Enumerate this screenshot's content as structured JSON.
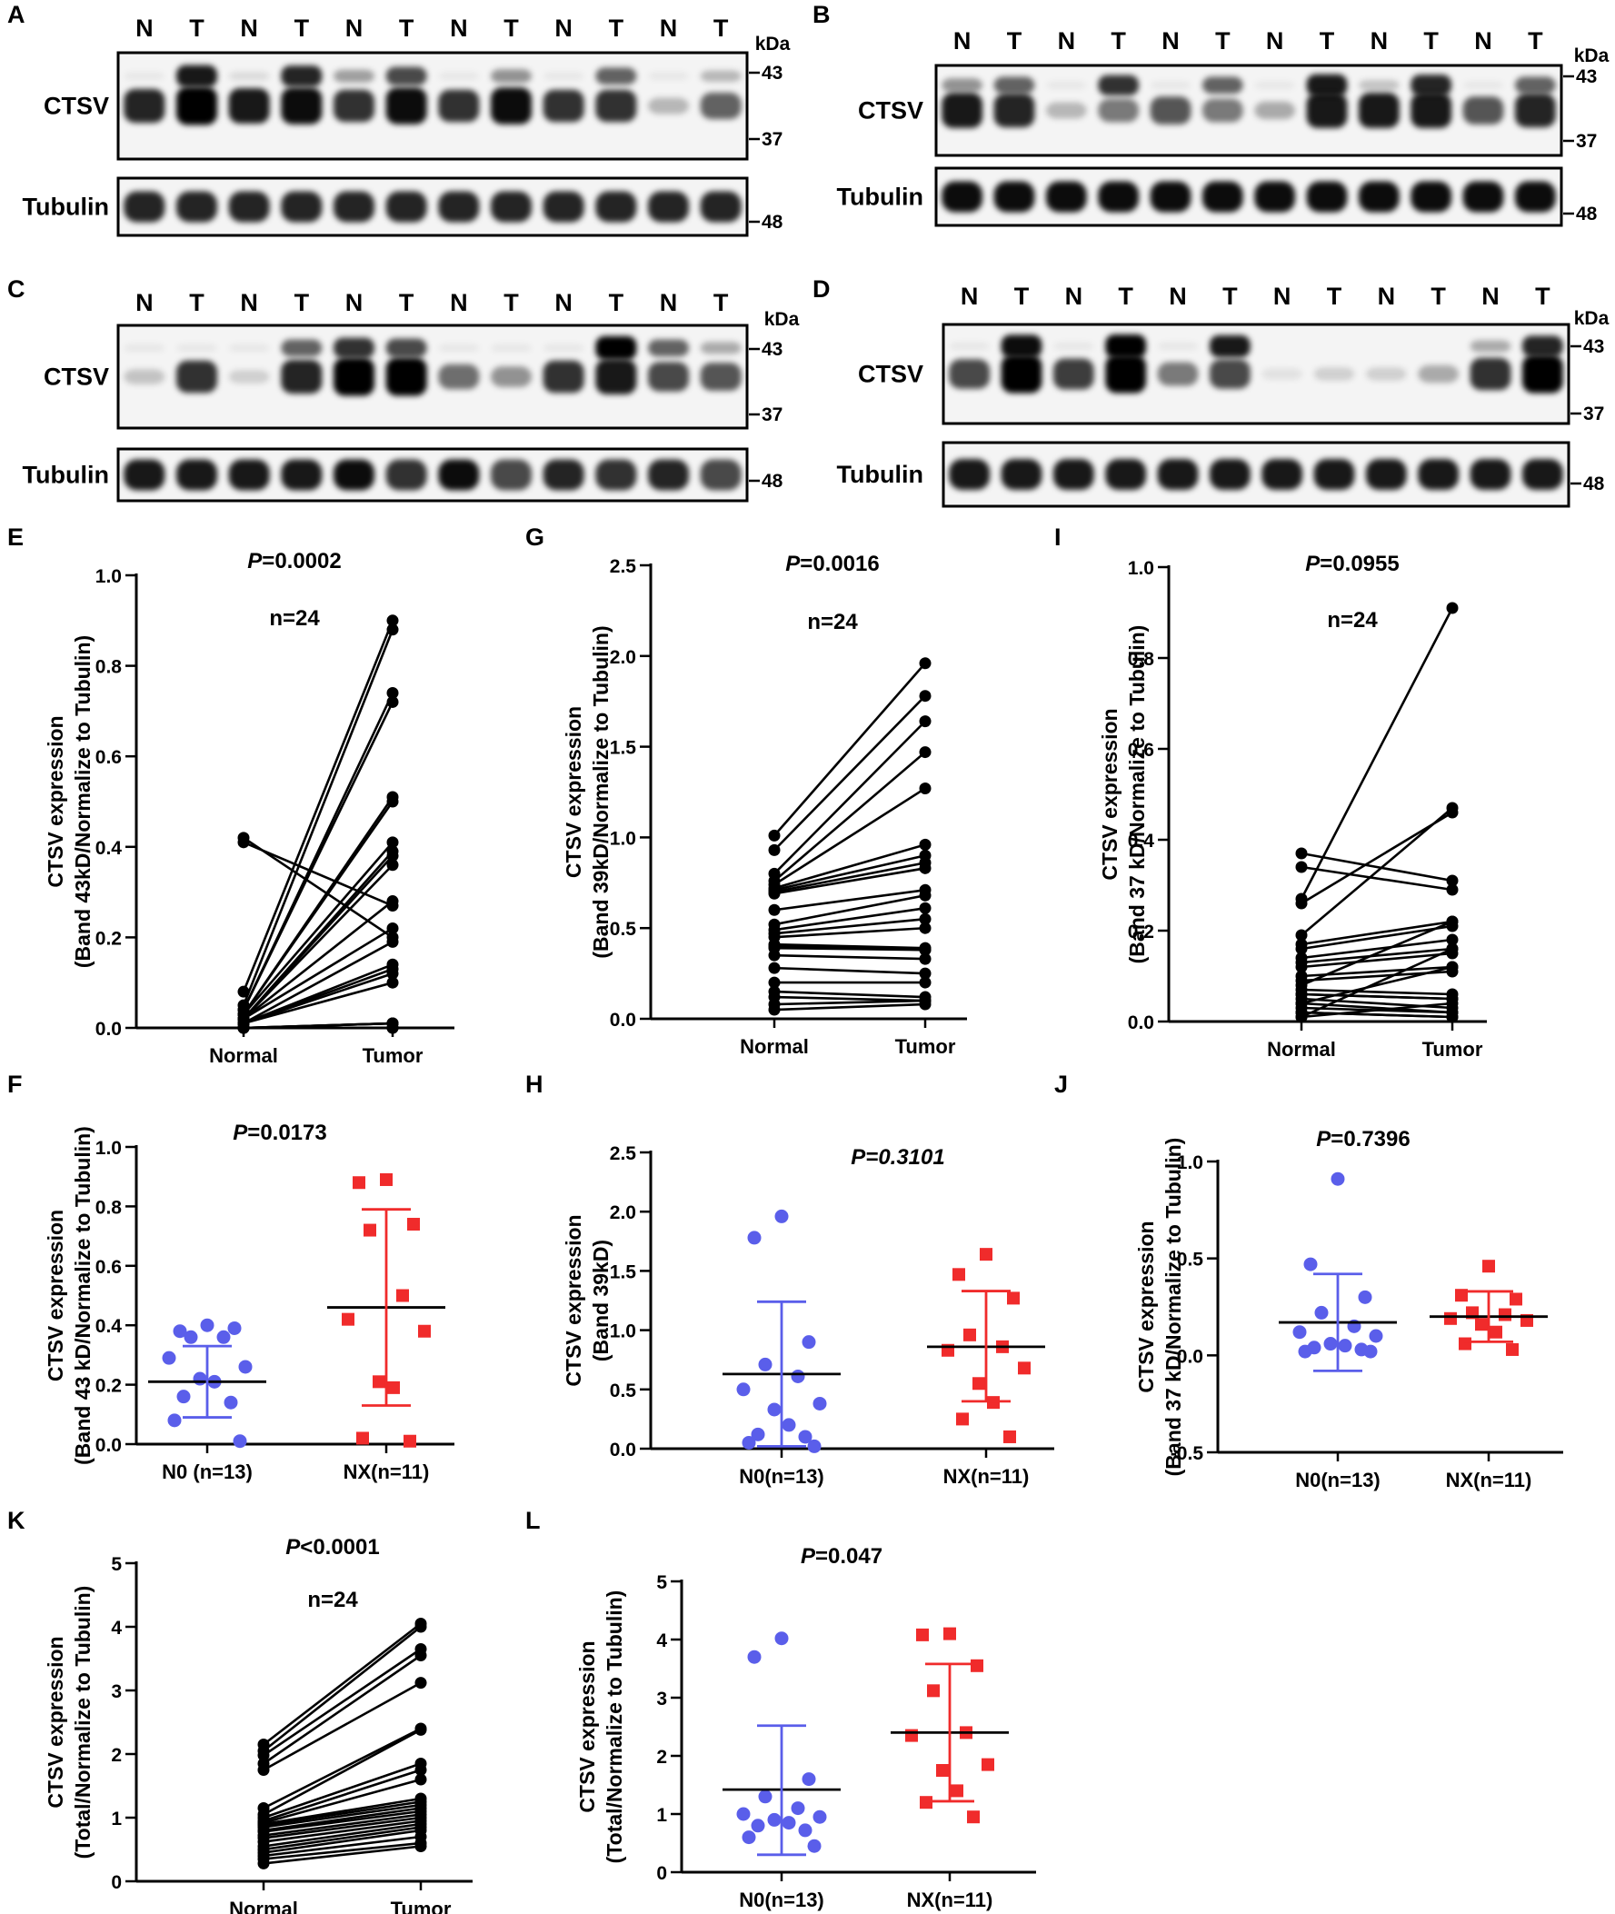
{
  "colors": {
    "normal_group": "#5A5EEA",
    "tumor_group": "#F02B2B",
    "line": "#000000"
  },
  "blots": [
    {
      "letter": "A",
      "lanes": [
        "N",
        "T",
        "N",
        "T",
        "N",
        "T",
        "N",
        "T",
        "N",
        "T",
        "N",
        "T"
      ],
      "protein": "CTSV",
      "loading": "Tubulin",
      "kda_label": "kDa",
      "markers": [
        "43",
        "37"
      ],
      "loading_marker": "48",
      "band43": [
        0.05,
        0.9,
        0.1,
        0.85,
        0.35,
        0.7,
        0.05,
        0.4,
        0.05,
        0.6,
        0.05,
        0.25
      ],
      "band39": [
        0.85,
        1.0,
        0.9,
        0.95,
        0.8,
        0.95,
        0.8,
        0.95,
        0.8,
        0.8,
        0.25,
        0.6
      ],
      "tubulin": [
        0.85,
        0.85,
        0.85,
        0.85,
        0.85,
        0.85,
        0.85,
        0.85,
        0.85,
        0.85,
        0.85,
        0.85
      ]
    },
    {
      "letter": "B",
      "lanes": [
        "N",
        "T",
        "N",
        "T",
        "N",
        "T",
        "N",
        "T",
        "N",
        "T",
        "N",
        "T"
      ],
      "protein": "CTSV",
      "loading": "Tubulin",
      "kda_label": "kDa",
      "markers": [
        "43",
        "37"
      ],
      "loading_marker": "48",
      "band43": [
        0.4,
        0.6,
        0.05,
        0.8,
        0.05,
        0.6,
        0.05,
        0.9,
        0.2,
        0.85,
        0.05,
        0.6
      ],
      "band39": [
        0.9,
        0.85,
        0.25,
        0.5,
        0.65,
        0.5,
        0.3,
        0.9,
        0.9,
        0.9,
        0.65,
        0.85
      ],
      "tubulin": [
        0.95,
        0.95,
        0.95,
        0.95,
        0.95,
        0.95,
        0.95,
        0.95,
        0.95,
        0.95,
        0.95,
        0.95
      ]
    },
    {
      "letter": "C",
      "lanes": [
        "N",
        "T",
        "N",
        "T",
        "N",
        "T",
        "N",
        "T",
        "N",
        "T",
        "N",
        "T"
      ],
      "protein": "CTSV",
      "loading": "Tubulin",
      "kda_label": "kDa",
      "markers": [
        "43",
        "37"
      ],
      "loading_marker": "48",
      "band43": [
        0.05,
        0.05,
        0.05,
        0.6,
        0.8,
        0.7,
        0.05,
        0.05,
        0.05,
        1.0,
        0.6,
        0.3
      ],
      "band39": [
        0.2,
        0.8,
        0.15,
        0.85,
        1.0,
        1.0,
        0.55,
        0.4,
        0.8,
        0.9,
        0.7,
        0.65
      ],
      "tubulin": [
        0.9,
        0.9,
        0.9,
        0.9,
        0.95,
        0.8,
        0.95,
        0.7,
        0.85,
        0.8,
        0.85,
        0.7
      ]
    },
    {
      "letter": "D",
      "lanes": [
        "N",
        "T",
        "N",
        "T",
        "N",
        "T",
        "N",
        "T",
        "N",
        "T",
        "N",
        "T"
      ],
      "protein": "CTSV",
      "loading": "Tubulin",
      "kda_label": "kDa",
      "markers": [
        "43",
        "37"
      ],
      "loading_marker": "48",
      "band43": [
        0.05,
        0.95,
        0.05,
        1.0,
        0.05,
        0.9,
        0.0,
        0.0,
        0.0,
        0.0,
        0.3,
        0.85
      ],
      "band39": [
        0.7,
        1.0,
        0.75,
        1.0,
        0.5,
        0.7,
        0.08,
        0.15,
        0.15,
        0.3,
        0.8,
        1.0
      ],
      "tubulin": [
        0.9,
        0.9,
        0.9,
        0.9,
        0.9,
        0.9,
        0.9,
        0.9,
        0.9,
        0.9,
        0.9,
        0.9
      ]
    }
  ],
  "chart_data": [
    {
      "id": "E",
      "type": "line",
      "letter": "E",
      "title_p": "P",
      "title_rest": "=0.0002",
      "title_italic": false,
      "n_label": "n=24",
      "ylabel_lines": [
        "CTSV expression",
        "(Band 43kD/Normalize to Tubulin)"
      ],
      "categories": [
        "Normal",
        "Tumor"
      ],
      "yticks": [
        "0.0",
        "0.2",
        "0.4",
        "0.6",
        "0.8",
        "1.0"
      ],
      "ylim": [
        0,
        1.0
      ],
      "series": {
        "normal": [
          0.42,
          0.41,
          0.08,
          0.05,
          0.04,
          0.04,
          0.03,
          0.03,
          0.03,
          0.02,
          0.02,
          0.02,
          0.02,
          0.02,
          0.01,
          0.01,
          0.01,
          0.01,
          0.01,
          0.0,
          0.0,
          0.0,
          0.0,
          0.0
        ],
        "tumor": [
          0.2,
          0.27,
          0.9,
          0.88,
          0.74,
          0.72,
          0.51,
          0.5,
          0.41,
          0.39,
          0.38,
          0.36,
          0.28,
          0.22,
          0.19,
          0.14,
          0.13,
          0.12,
          0.1,
          0.01,
          0.01,
          0.01,
          0.0,
          0.0
        ]
      }
    },
    {
      "id": "G",
      "type": "line",
      "letter": "G",
      "title_p": "P",
      "title_rest": "=0.0016",
      "title_italic": false,
      "n_label": "n=24",
      "ylabel_lines": [
        "CTSV expression",
        "(Band 39kD/Normalize to Tubulin)"
      ],
      "categories": [
        "Normal",
        "Tumor"
      ],
      "yticks": [
        "0.0",
        "0.5",
        "1.0",
        "1.5",
        "2.0",
        "2.5"
      ],
      "ylim": [
        0,
        2.5
      ],
      "series": {
        "normal": [
          1.01,
          0.93,
          0.8,
          0.76,
          0.74,
          0.72,
          0.71,
          0.7,
          0.69,
          0.6,
          0.52,
          0.49,
          0.47,
          0.45,
          0.41,
          0.4,
          0.39,
          0.35,
          0.28,
          0.2,
          0.15,
          0.12,
          0.08,
          0.05
        ],
        "tumor": [
          1.96,
          1.78,
          1.64,
          1.47,
          1.27,
          0.96,
          0.9,
          0.86,
          0.83,
          0.71,
          0.68,
          0.61,
          0.55,
          0.5,
          0.39,
          0.38,
          0.38,
          0.33,
          0.25,
          0.2,
          0.12,
          0.1,
          0.1,
          0.08
        ]
      }
    },
    {
      "id": "I",
      "type": "line",
      "letter": "I",
      "title_p": "P",
      "title_rest": "=0.0955",
      "title_italic": false,
      "n_label": "n=24",
      "ylabel_lines": [
        "CTSV expression",
        "(Band 37 kD/Normalize to Tubulin)"
      ],
      "categories": [
        "Normal",
        "Tumor"
      ],
      "yticks": [
        "0.0",
        "0.2",
        "0.4",
        "0.6",
        "0.8",
        "1.0"
      ],
      "ylim": [
        0,
        1.0
      ],
      "series": {
        "normal": [
          0.37,
          0.34,
          0.27,
          0.26,
          0.19,
          0.17,
          0.16,
          0.14,
          0.13,
          0.12,
          0.1,
          0.09,
          0.08,
          0.07,
          0.06,
          0.06,
          0.05,
          0.04,
          0.04,
          0.03,
          0.02,
          0.02,
          0.01,
          0.01
        ],
        "tumor": [
          0.31,
          0.29,
          0.91,
          0.46,
          0.47,
          0.22,
          0.21,
          0.18,
          0.16,
          0.15,
          0.12,
          0.11,
          0.22,
          0.06,
          0.05,
          0.05,
          0.03,
          0.12,
          0.02,
          0.02,
          0.01,
          0.01,
          0.16,
          0.04
        ]
      }
    },
    {
      "id": "F",
      "type": "scatter",
      "letter": "F",
      "title_p": "P",
      "title_rest": "=0.0173",
      "title_italic": false,
      "ylabel_lines": [
        "CTSV expression",
        "(Band 43 kD/Normalize to Tubulin)"
      ],
      "categories": [
        "N0 (n=13)",
        "NX(n=11)"
      ],
      "yticks": [
        "0.0",
        "0.2",
        "0.4",
        "0.6",
        "0.8",
        "1.0"
      ],
      "ylim": [
        0,
        1.0
      ],
      "groups": [
        {
          "name": "N0",
          "values": [
            0.4,
            0.38,
            0.39,
            0.36,
            0.36,
            0.29,
            0.26,
            0.22,
            0.21,
            0.16,
            0.14,
            0.08,
            0.01
          ],
          "mean": 0.21,
          "sd_low": 0.09,
          "sd_high": 0.33
        },
        {
          "name": "NX",
          "values": [
            0.89,
            0.88,
            0.74,
            0.72,
            0.5,
            0.42,
            0.38,
            0.21,
            0.19,
            0.02,
            0.01
          ],
          "mean": 0.46,
          "sd_low": 0.13,
          "sd_high": 0.79
        }
      ]
    },
    {
      "id": "H",
      "type": "scatter",
      "letter": "H",
      "title_p": "P",
      "title_rest": "=0.3101",
      "title_italic": true,
      "ylabel_lines": [
        "CTSV expression",
        "(Band 39kD)"
      ],
      "categories": [
        "N0(n=13)",
        "NX(n=11)"
      ],
      "yticks": [
        "0.0",
        "0.5",
        "1.0",
        "1.5",
        "2.0",
        "2.5"
      ],
      "ylim": [
        0,
        2.5
      ],
      "groups": [
        {
          "name": "N0",
          "values": [
            1.96,
            1.78,
            0.9,
            0.71,
            0.61,
            0.5,
            0.38,
            0.33,
            0.2,
            0.12,
            0.1,
            0.05,
            0.02
          ],
          "mean": 0.63,
          "sd_low": 0.02,
          "sd_high": 1.24
        },
        {
          "name": "NX",
          "values": [
            1.64,
            1.47,
            1.27,
            0.96,
            0.86,
            0.83,
            0.68,
            0.55,
            0.39,
            0.25,
            0.1
          ],
          "mean": 0.86,
          "sd_low": 0.4,
          "sd_high": 1.33
        }
      ]
    },
    {
      "id": "J",
      "type": "scatter",
      "letter": "J",
      "title_p": "P",
      "title_rest": "=0.7396",
      "title_italic": false,
      "ylabel_lines": [
        "CTSV expression",
        "(Band 37 kD/Normalize to Tubulin)"
      ],
      "categories": [
        "N0(n=13)",
        "NX(n=11)"
      ],
      "yticks": [
        "-0.5",
        "0.0",
        "0.5",
        "1.0"
      ],
      "ylim": [
        -0.5,
        1.0
      ],
      "groups": [
        {
          "name": "N0",
          "values": [
            0.91,
            0.47,
            0.3,
            0.22,
            0.15,
            0.12,
            0.1,
            0.06,
            0.05,
            0.04,
            0.03,
            0.02,
            0.02
          ],
          "mean": 0.17,
          "sd_low": -0.08,
          "sd_high": 0.42
        },
        {
          "name": "NX",
          "values": [
            0.46,
            0.31,
            0.29,
            0.22,
            0.21,
            0.19,
            0.18,
            0.16,
            0.12,
            0.06,
            0.03
          ],
          "mean": 0.2,
          "sd_low": 0.07,
          "sd_high": 0.33
        }
      ]
    },
    {
      "id": "K",
      "type": "line",
      "letter": "K",
      "title_p": "P",
      "title_rest": "<0.0001",
      "title_italic": false,
      "n_label": "n=24",
      "ylabel_lines": [
        "CTSV expression",
        "(Total/Normalize to Tubulin)"
      ],
      "categories": [
        "Normal",
        "Tumor"
      ],
      "yticks": [
        "0",
        "1",
        "2",
        "3",
        "4",
        "5"
      ],
      "ylim": [
        0,
        5
      ],
      "series": {
        "normal": [
          2.15,
          2.05,
          1.98,
          1.85,
          1.75,
          1.15,
          1.05,
          1.0,
          0.95,
          0.92,
          0.9,
          0.88,
          0.85,
          0.8,
          0.78,
          0.72,
          0.68,
          0.62,
          0.55,
          0.5,
          0.45,
          0.4,
          0.35,
          0.28
        ],
        "tumor": [
          4.05,
          4.0,
          3.65,
          3.55,
          3.12,
          2.4,
          2.38,
          1.85,
          1.75,
          1.6,
          1.3,
          1.25,
          1.2,
          1.15,
          1.1,
          1.05,
          1.0,
          0.95,
          0.9,
          0.85,
          0.8,
          0.7,
          0.6,
          0.55
        ]
      }
    },
    {
      "id": "L",
      "type": "scatter",
      "letter": "L",
      "title_p": "P",
      "title_rest": "=0.047",
      "title_italic": false,
      "ylabel_lines": [
        "CTSV expression",
        "(Total/Normalize to Tubulin)"
      ],
      "categories": [
        "N0(n=13)",
        "NX(n=11)"
      ],
      "yticks": [
        "0",
        "1",
        "2",
        "3",
        "4",
        "5"
      ],
      "ylim": [
        0,
        5
      ],
      "groups": [
        {
          "name": "N0",
          "values": [
            4.02,
            3.7,
            1.6,
            1.3,
            1.1,
            1.0,
            0.95,
            0.9,
            0.85,
            0.8,
            0.72,
            0.6,
            0.45
          ],
          "mean": 1.42,
          "sd_low": 0.3,
          "sd_high": 2.52
        },
        {
          "name": "NX",
          "values": [
            4.1,
            4.08,
            3.55,
            3.12,
            2.4,
            2.35,
            1.85,
            1.75,
            1.4,
            1.2,
            0.95
          ],
          "mean": 2.4,
          "sd_low": 1.22,
          "sd_high": 3.58
        }
      ]
    }
  ]
}
